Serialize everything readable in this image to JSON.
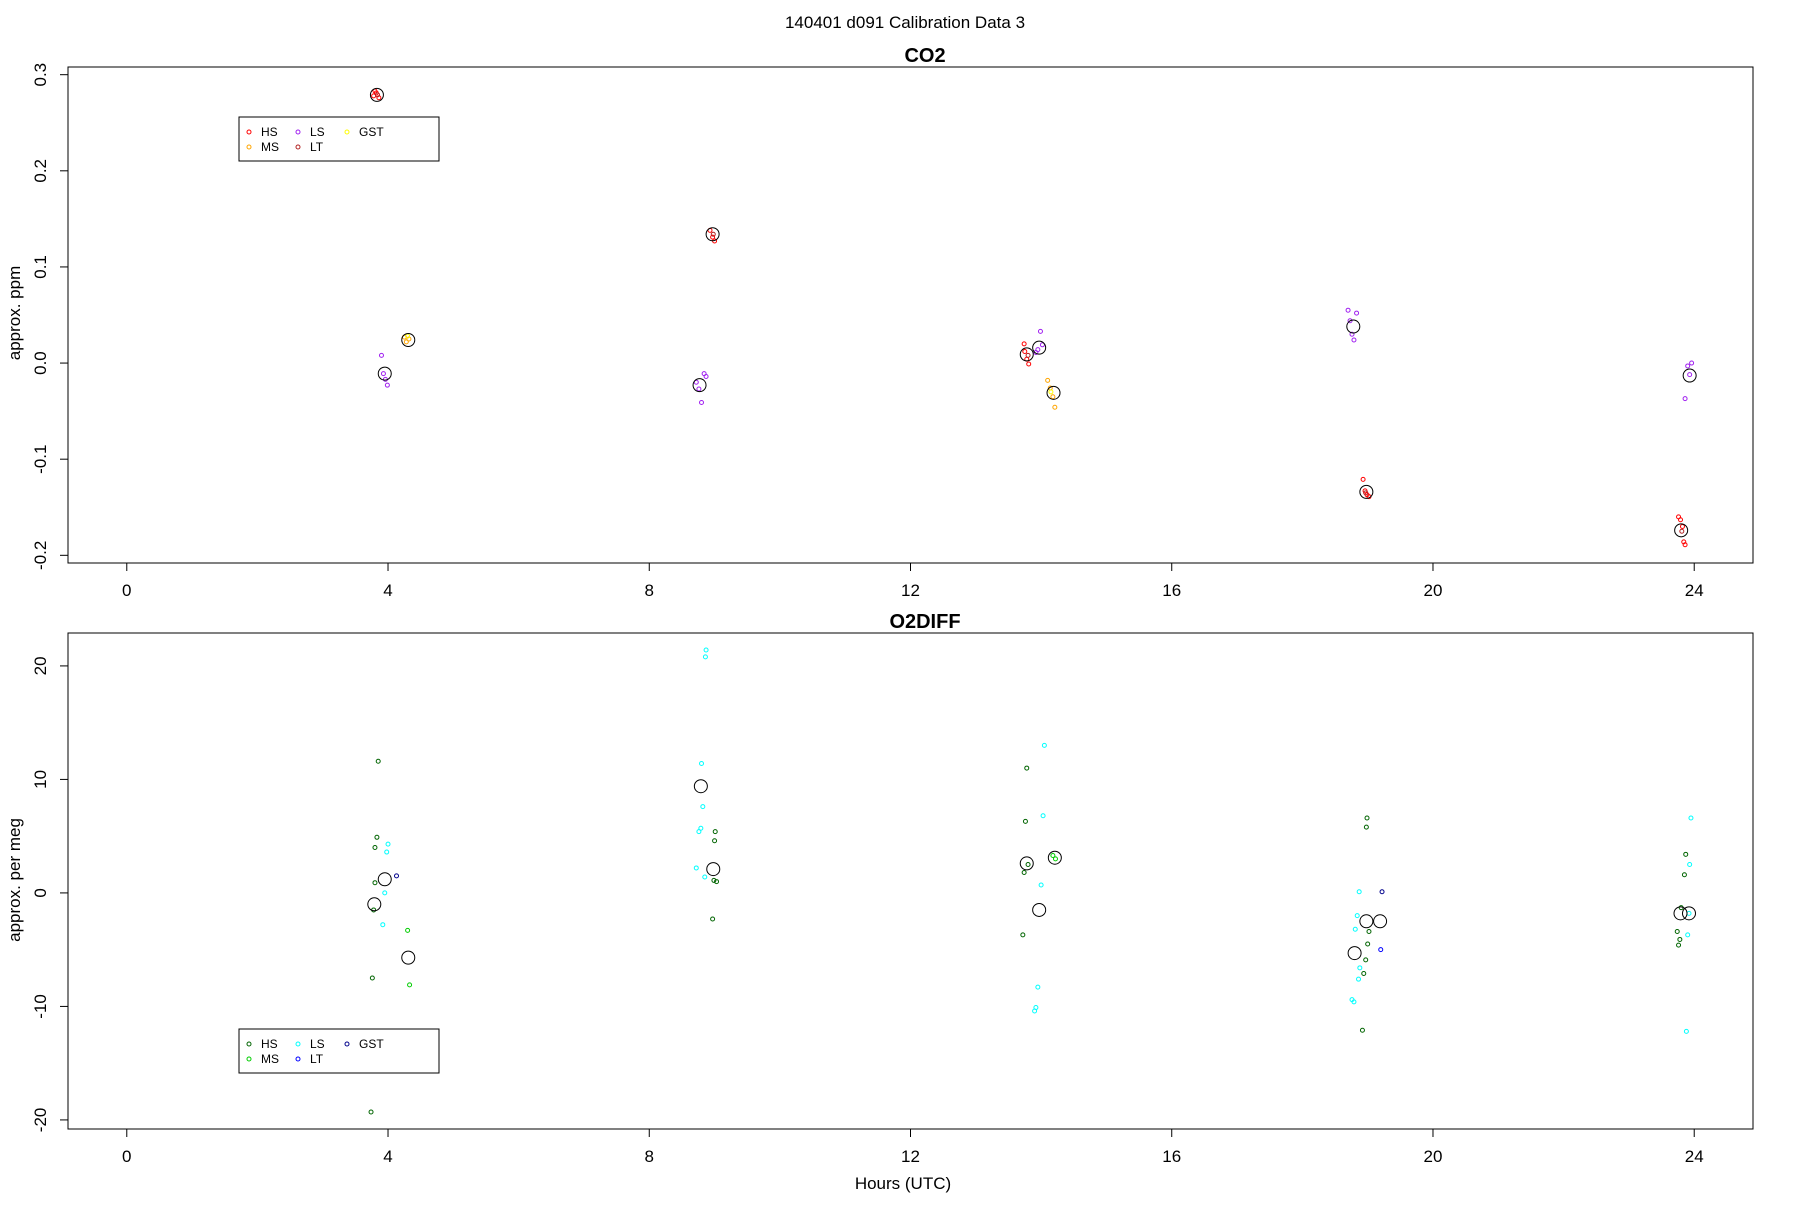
{
  "figure": {
    "title": "140401   d091   Calibration Data 3",
    "xlabel": "Hours (UTC)"
  },
  "chart_data": [
    {
      "type": "scatter",
      "title": "CO2",
      "xlabel": "",
      "ylabel": "approx. ppm",
      "xlim": [
        -0.9,
        24.9
      ],
      "ylim": [
        -0.208,
        0.308
      ],
      "xticks": [
        0,
        4,
        8,
        12,
        16,
        20,
        24
      ],
      "xtick_labels": [
        "0",
        "4",
        "8",
        "12",
        "16",
        "20",
        "24"
      ],
      "yticks": [
        -0.2,
        -0.1,
        0.0,
        0.1,
        0.2,
        0.3
      ],
      "ytick_labels": [
        "-0.2",
        "-0.1",
        "0.0",
        "0.1",
        "0.2",
        "0.3"
      ],
      "grid": false,
      "legend": {
        "placement": "top-left",
        "entries": [
          {
            "label": "HS",
            "color": "#ff0000"
          },
          {
            "label": "MS",
            "color": "#ffa500"
          },
          {
            "label": "LS",
            "color": "#a020f0"
          },
          {
            "label": "LT",
            "color": "#b22222"
          },
          {
            "label": "GST",
            "color": "#ffff00"
          }
        ]
      },
      "series": [
        {
          "name": "HS",
          "color": "#ff0000",
          "points": [
            [
              3.78,
              0.278
            ],
            [
              3.82,
              0.281
            ],
            [
              3.86,
              0.276
            ],
            [
              3.8,
              0.283
            ],
            [
              8.93,
              0.138
            ],
            [
              8.97,
              0.131
            ],
            [
              9.0,
              0.127
            ],
            [
              13.75,
              0.012
            ],
            [
              13.78,
              0.004
            ],
            [
              13.81,
              -0.001
            ],
            [
              13.74,
              0.02
            ],
            [
              18.93,
              -0.121
            ],
            [
              18.96,
              -0.133
            ],
            [
              18.99,
              -0.137
            ],
            [
              19.02,
              -0.139
            ],
            [
              23.76,
              -0.16
            ],
            [
              23.79,
              -0.163
            ],
            [
              23.82,
              -0.17
            ],
            [
              23.84,
              -0.186
            ],
            [
              23.86,
              -0.189
            ]
          ]
        },
        {
          "name": "MS",
          "color": "#ffa500",
          "points": [
            [
              4.25,
              0.027
            ],
            [
              4.28,
              0.022
            ],
            [
              4.32,
              0.025
            ],
            [
              14.1,
              -0.018
            ],
            [
              14.14,
              -0.026
            ],
            [
              14.18,
              -0.035
            ],
            [
              14.21,
              -0.046
            ]
          ]
        },
        {
          "name": "LS",
          "color": "#a020f0",
          "points": [
            [
              3.9,
              0.008
            ],
            [
              3.93,
              -0.011
            ],
            [
              3.96,
              -0.017
            ],
            [
              3.99,
              -0.023
            ],
            [
              8.72,
              -0.02
            ],
            [
              8.76,
              -0.027
            ],
            [
              8.8,
              -0.041
            ],
            [
              8.84,
              -0.011
            ],
            [
              8.87,
              -0.014
            ],
            [
              13.95,
              0.014
            ],
            [
              13.99,
              0.033
            ],
            [
              14.02,
              0.019
            ],
            [
              13.92,
              0.011
            ],
            [
              18.7,
              0.055
            ],
            [
              18.73,
              0.044
            ],
            [
              18.76,
              0.03
            ],
            [
              18.79,
              0.024
            ],
            [
              18.83,
              0.052
            ],
            [
              23.86,
              -0.037
            ],
            [
              23.9,
              -0.003
            ],
            [
              23.93,
              -0.012
            ],
            [
              23.96,
              0.0
            ]
          ]
        },
        {
          "name": "LT",
          "color": "#b22222",
          "points": [
            [
              3.84,
              0.279
            ],
            [
              8.98,
              0.134
            ],
            [
              13.8,
              0.008
            ],
            [
              18.97,
              -0.135
            ],
            [
              23.81,
              -0.175
            ]
          ]
        },
        {
          "name": "GST",
          "color": "#ffff00",
          "points": [
            [
              4.3,
              0.028
            ],
            [
              14.15,
              -0.03
            ]
          ]
        }
      ],
      "means": [
        [
          3.83,
          0.279
        ],
        [
          3.95,
          -0.011
        ],
        [
          4.31,
          0.024
        ],
        [
          8.77,
          -0.023
        ],
        [
          8.97,
          0.134
        ],
        [
          13.78,
          0.009
        ],
        [
          13.97,
          0.016
        ],
        [
          14.19,
          -0.031
        ],
        [
          18.78,
          0.038
        ],
        [
          18.98,
          -0.134
        ],
        [
          23.8,
          -0.174
        ],
        [
          23.93,
          -0.013
        ]
      ]
    },
    {
      "type": "scatter",
      "title": "O2DIFF",
      "xlabel": "Hours (UTC)",
      "ylabel": "approx. per meg",
      "xlim": [
        -0.9,
        24.9
      ],
      "ylim": [
        -20.8,
        22.9
      ],
      "xticks": [
        0,
        4,
        8,
        12,
        16,
        20,
        24
      ],
      "xtick_labels": [
        "0",
        "4",
        "8",
        "12",
        "16",
        "20",
        "24"
      ],
      "yticks": [
        -20,
        -10,
        0,
        10,
        20
      ],
      "ytick_labels": [
        "-20",
        "-10",
        "0",
        "10",
        "20"
      ],
      "grid": false,
      "legend": {
        "placement": "bottom-left",
        "entries": [
          {
            "label": "HS",
            "color": "#006400"
          },
          {
            "label": "MS",
            "color": "#00cd00"
          },
          {
            "label": "LS",
            "color": "#00ffff"
          },
          {
            "label": "LT",
            "color": "#0000ff"
          },
          {
            "label": "GST",
            "color": "#00008b"
          }
        ]
      },
      "series": [
        {
          "name": "HS",
          "color": "#006400",
          "points": [
            [
              3.74,
              -19.3
            ],
            [
              3.76,
              -7.5
            ],
            [
              3.78,
              -1.5
            ],
            [
              3.8,
              0.9
            ],
            [
              3.8,
              4.0
            ],
            [
              3.83,
              4.9
            ],
            [
              3.85,
              11.6
            ],
            [
              8.97,
              -2.3
            ],
            [
              8.99,
              1.1
            ],
            [
              9.0,
              4.6
            ],
            [
              9.01,
              5.4
            ],
            [
              9.03,
              1.0
            ],
            [
              13.72,
              -3.7
            ],
            [
              13.74,
              1.8
            ],
            [
              13.76,
              6.3
            ],
            [
              13.78,
              11.0
            ],
            [
              13.8,
              2.5
            ],
            [
              18.92,
              -12.1
            ],
            [
              18.94,
              -7.1
            ],
            [
              18.97,
              -5.9
            ],
            [
              19.0,
              -4.5
            ],
            [
              19.02,
              -3.4
            ],
            [
              18.98,
              5.8
            ],
            [
              18.99,
              6.6
            ],
            [
              23.74,
              -3.4
            ],
            [
              23.76,
              -4.6
            ],
            [
              23.78,
              -4.1
            ],
            [
              23.8,
              -1.3
            ],
            [
              23.85,
              1.6
            ],
            [
              23.87,
              3.4
            ]
          ]
        },
        {
          "name": "MS",
          "color": "#00cd00",
          "points": [
            [
              4.3,
              -3.3
            ],
            [
              4.33,
              -8.1
            ],
            [
              14.18,
              3.3
            ],
            [
              14.22,
              3.0
            ]
          ]
        },
        {
          "name": "LS",
          "color": "#00ffff",
          "points": [
            [
              3.92,
              -2.8
            ],
            [
              3.95,
              0.0
            ],
            [
              3.98,
              3.6
            ],
            [
              4.0,
              4.3
            ],
            [
              8.72,
              2.2
            ],
            [
              8.76,
              5.4
            ],
            [
              8.79,
              5.7
            ],
            [
              8.8,
              11.4
            ],
            [
              8.82,
              7.6
            ],
            [
              8.85,
              1.4
            ],
            [
              8.86,
              20.8
            ],
            [
              8.87,
              21.4
            ],
            [
              13.9,
              -10.4
            ],
            [
              13.92,
              -10.1
            ],
            [
              13.95,
              -8.3
            ],
            [
              14.0,
              0.7
            ],
            [
              14.03,
              6.8
            ],
            [
              14.05,
              13.0
            ],
            [
              18.76,
              -9.4
            ],
            [
              18.79,
              -9.6
            ],
            [
              18.81,
              -3.2
            ],
            [
              18.84,
              -2.0
            ],
            [
              18.86,
              -7.6
            ],
            [
              18.88,
              -6.6
            ],
            [
              18.87,
              0.1
            ],
            [
              23.88,
              -12.2
            ],
            [
              23.9,
              -3.7
            ],
            [
              23.93,
              2.5
            ],
            [
              23.95,
              6.6
            ],
            [
              23.92,
              -1.8
            ]
          ]
        },
        {
          "name": "LT",
          "color": "#0000ff",
          "points": [
            [
              19.2,
              -5.0
            ]
          ]
        },
        {
          "name": "GST",
          "color": "#00008b",
          "points": [
            [
              4.13,
              1.5
            ],
            [
              19.22,
              0.1
            ]
          ]
        }
      ],
      "means": [
        [
          3.79,
          -1.0
        ],
        [
          3.95,
          1.2
        ],
        [
          4.31,
          -5.7
        ],
        [
          8.79,
          9.4
        ],
        [
          8.98,
          2.1
        ],
        [
          13.78,
          2.6
        ],
        [
          13.97,
          -1.5
        ],
        [
          14.21,
          3.1
        ],
        [
          18.8,
          -5.3
        ],
        [
          18.98,
          -2.5
        ],
        [
          19.19,
          -2.5
        ],
        [
          23.79,
          -1.8
        ],
        [
          23.92,
          -1.8
        ]
      ]
    }
  ]
}
